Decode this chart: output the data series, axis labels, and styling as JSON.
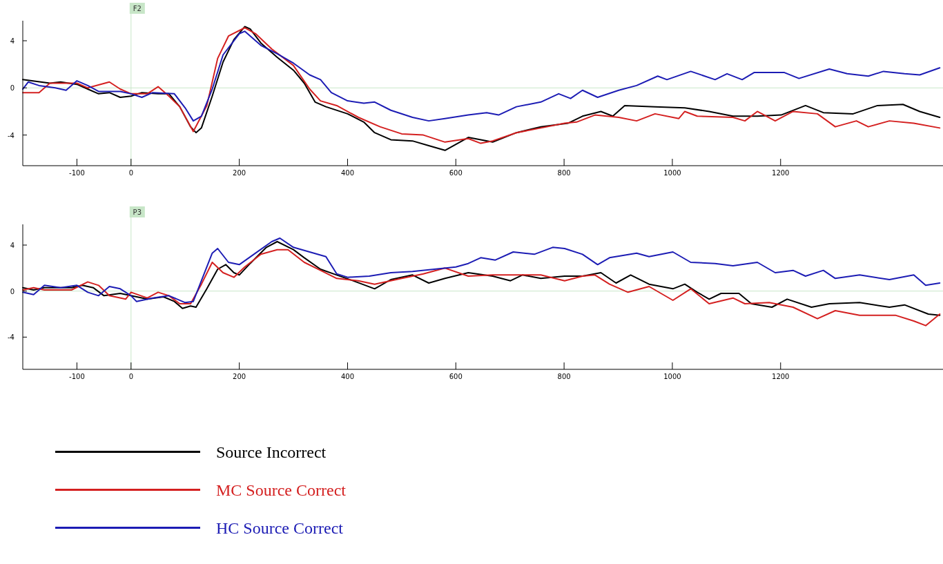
{
  "chart_data": [
    {
      "type": "line",
      "xlim": [
        -200,
        1500
      ],
      "ylim": [
        -6.6,
        5.7
      ],
      "xticks": [
        -100,
        0,
        200,
        400,
        600,
        800,
        1000,
        1200
      ],
      "yticks": [
        4,
        0,
        -4
      ],
      "grid": false,
      "legend": false,
      "line_style": "solid",
      "ref_lines": [
        {
          "axis": "x",
          "value": 0,
          "label": "F2",
          "color": "#c8e6c8"
        },
        {
          "axis": "y",
          "value": 0,
          "color": "#c8e6c8"
        }
      ],
      "series": [
        {
          "color": "#000000",
          "x": [
            -200,
            -150,
            -130,
            -100,
            -80,
            -60,
            -40,
            -20,
            0,
            20,
            50,
            70,
            90,
            110,
            120,
            130,
            150,
            170,
            190,
            210,
            220,
            240,
            270,
            300,
            320,
            340,
            360,
            400,
            430,
            450,
            480,
            520,
            550,
            580,
            623,
            668,
            712,
            757,
            807,
            834,
            868,
            890,
            912,
            968,
            1023,
            1068,
            1112,
            1157,
            1201,
            1246,
            1279,
            1334,
            1379,
            1426,
            1457,
            1494
          ],
          "values": [
            0.7,
            0.4,
            0.5,
            0.3,
            -0.1,
            -0.5,
            -0.4,
            -0.8,
            -0.7,
            -0.4,
            -0.5,
            -0.5,
            -1.6,
            -3.3,
            -3.8,
            -3.4,
            -0.7,
            2.2,
            4.1,
            5.2,
            5.0,
            3.8,
            2.6,
            1.5,
            0.4,
            -1.2,
            -1.6,
            -2.2,
            -2.9,
            -3.8,
            -4.4,
            -4.5,
            -4.9,
            -5.3,
            -4.2,
            -4.6,
            -3.8,
            -3.3,
            -3.0,
            -2.4,
            -2.0,
            -2.4,
            -1.5,
            -1.6,
            -1.7,
            -2.0,
            -2.4,
            -2.4,
            -2.3,
            -1.5,
            -2.1,
            -2.2,
            -1.5,
            -1.4,
            -2.0,
            -2.5
          ]
        },
        {
          "color": "#d42020",
          "x": [
            -200,
            -170,
            -150,
            -100,
            -80,
            -40,
            -20,
            0,
            30,
            50,
            70,
            90,
            115,
            140,
            160,
            180,
            210,
            230,
            260,
            300,
            330,
            350,
            380,
            420,
            460,
            500,
            540,
            580,
            623,
            646,
            668,
            712,
            757,
            801,
            823,
            857,
            901,
            934,
            968,
            1012,
            1023,
            1046,
            1112,
            1134,
            1157,
            1190,
            1223,
            1268,
            1301,
            1340,
            1362,
            1401,
            1446,
            1494
          ],
          "values": [
            -0.4,
            -0.4,
            0.4,
            0.4,
            0.0,
            0.5,
            -0.1,
            -0.5,
            -0.5,
            0.1,
            -0.7,
            -1.6,
            -3.7,
            -1.5,
            2.5,
            4.4,
            5.1,
            4.6,
            3.3,
            1.9,
            -0.1,
            -1.1,
            -1.5,
            -2.5,
            -3.3,
            -3.9,
            -4.0,
            -4.6,
            -4.3,
            -4.7,
            -4.5,
            -3.8,
            -3.4,
            -3.0,
            -2.9,
            -2.3,
            -2.5,
            -2.8,
            -2.2,
            -2.6,
            -2.0,
            -2.4,
            -2.5,
            -2.8,
            -2.0,
            -2.8,
            -2.0,
            -2.2,
            -3.3,
            -2.8,
            -3.3,
            -2.8,
            -3.0,
            -3.4
          ]
        },
        {
          "color": "#1c1cb4",
          "x": [
            -200,
            -190,
            -170,
            -140,
            -120,
            -100,
            -80,
            -60,
            -20,
            0,
            20,
            40,
            80,
            100,
            115,
            130,
            150,
            170,
            200,
            210,
            240,
            270,
            300,
            330,
            350,
            370,
            400,
            430,
            450,
            480,
            520,
            550,
            580,
            623,
            657,
            679,
            712,
            757,
            790,
            812,
            834,
            862,
            901,
            934,
            973,
            990,
            1034,
            1079,
            1101,
            1129,
            1151,
            1207,
            1234,
            1290,
            1323,
            1362,
            1390,
            1429,
            1457,
            1494
          ],
          "values": [
            -0.1,
            0.5,
            0.2,
            0.0,
            -0.2,
            0.6,
            0.2,
            -0.3,
            -0.3,
            -0.5,
            -0.8,
            -0.4,
            -0.5,
            -1.7,
            -2.8,
            -2.4,
            -0.1,
            2.8,
            4.6,
            4.8,
            3.6,
            2.9,
            2.1,
            1.1,
            0.7,
            -0.4,
            -1.1,
            -1.3,
            -1.2,
            -1.9,
            -2.5,
            -2.8,
            -2.6,
            -2.3,
            -2.1,
            -2.3,
            -1.6,
            -1.2,
            -0.5,
            -0.9,
            -0.2,
            -0.8,
            -0.2,
            0.2,
            1.0,
            0.7,
            1.4,
            0.7,
            1.2,
            0.7,
            1.3,
            1.3,
            0.8,
            1.6,
            1.2,
            1.0,
            1.4,
            1.2,
            1.1,
            1.7
          ]
        }
      ]
    },
    {
      "type": "line",
      "xlim": [
        -200,
        1500
      ],
      "ylim": [
        -6.8,
        5.8
      ],
      "xticks": [
        -100,
        0,
        200,
        400,
        600,
        800,
        1000,
        1200
      ],
      "yticks": [
        4,
        0,
        -4
      ],
      "grid": false,
      "legend": "bottom left",
      "line_style": "solid",
      "ref_lines": [
        {
          "axis": "x",
          "value": 0,
          "label": "P3",
          "color": "#c8e6c8"
        },
        {
          "axis": "y",
          "value": 0,
          "color": "#c8e6c8"
        }
      ],
      "series": [
        {
          "name": "Source Incorrect",
          "color": "#000000",
          "x": [
            -200,
            -180,
            -160,
            -130,
            -110,
            -90,
            -70,
            -50,
            -20,
            0,
            30,
            60,
            80,
            95,
            110,
            120,
            140,
            160,
            175,
            190,
            200,
            220,
            250,
            270,
            300,
            320,
            350,
            380,
            410,
            450,
            480,
            520,
            550,
            580,
            623,
            668,
            701,
            723,
            757,
            801,
            834,
            868,
            896,
            923,
            957,
            1001,
            1023,
            1046,
            1068,
            1090,
            1123,
            1146,
            1184,
            1212,
            1257,
            1290,
            1346,
            1401,
            1429,
            1473,
            1494
          ],
          "values": [
            0.3,
            0.1,
            0.3,
            0.3,
            0.3,
            0.5,
            0.3,
            -0.4,
            -0.2,
            -0.4,
            -0.7,
            -0.5,
            -0.9,
            -1.5,
            -1.3,
            -1.4,
            0.2,
            1.9,
            2.3,
            1.6,
            1.4,
            2.4,
            3.8,
            4.3,
            3.6,
            2.9,
            1.9,
            1.4,
            0.9,
            0.2,
            1.0,
            1.4,
            0.7,
            1.1,
            1.6,
            1.3,
            0.9,
            1.4,
            1.1,
            1.3,
            1.3,
            1.6,
            0.7,
            1.4,
            0.6,
            0.2,
            0.6,
            -0.1,
            -0.7,
            -0.2,
            -0.2,
            -1.1,
            -1.4,
            -0.7,
            -1.4,
            -1.1,
            -1.0,
            -1.4,
            -1.2,
            -2.0,
            -2.1
          ]
        },
        {
          "name": "MC Source Correct",
          "color": "#d42020",
          "x": [
            -200,
            -180,
            -160,
            -130,
            -110,
            -80,
            -60,
            -40,
            -10,
            0,
            30,
            50,
            70,
            90,
            110,
            130,
            150,
            170,
            190,
            210,
            240,
            270,
            290,
            320,
            350,
            380,
            420,
            450,
            500,
            540,
            580,
            623,
            668,
            757,
            801,
            834,
            857,
            884,
            918,
            957,
            1001,
            1034,
            1068,
            1112,
            1134,
            1179,
            1223,
            1268,
            1301,
            1346,
            1412,
            1446,
            1468,
            1494
          ],
          "values": [
            0.1,
            0.3,
            0.1,
            0.1,
            0.1,
            0.8,
            0.5,
            -0.4,
            -0.7,
            -0.1,
            -0.6,
            -0.1,
            -0.4,
            -1.1,
            -1.1,
            0.6,
            2.5,
            1.6,
            1.2,
            2.1,
            3.2,
            3.6,
            3.6,
            2.5,
            1.8,
            1.1,
            0.9,
            0.6,
            1.1,
            1.5,
            2.0,
            1.3,
            1.4,
            1.4,
            0.9,
            1.3,
            1.4,
            0.6,
            -0.1,
            0.4,
            -0.8,
            0.2,
            -1.1,
            -0.6,
            -1.1,
            -1.0,
            -1.4,
            -2.4,
            -1.7,
            -2.1,
            -2.1,
            -2.6,
            -3.0,
            -2.0
          ]
        },
        {
          "name": "HC Source Correct",
          "color": "#1c1cb4",
          "x": [
            -200,
            -180,
            -160,
            -130,
            -100,
            -80,
            -60,
            -40,
            -20,
            0,
            10,
            40,
            70,
            100,
            115,
            130,
            150,
            160,
            180,
            200,
            230,
            260,
            275,
            300,
            330,
            360,
            380,
            400,
            440,
            480,
            520,
            560,
            600,
            623,
            646,
            673,
            706,
            745,
            779,
            801,
            834,
            862,
            884,
            934,
            957,
            1001,
            1034,
            1079,
            1112,
            1157,
            1190,
            1223,
            1246,
            1279,
            1301,
            1346,
            1401,
            1446,
            1468,
            1494
          ],
          "values": [
            -0.1,
            -0.3,
            0.5,
            0.3,
            0.5,
            -0.1,
            -0.4,
            0.4,
            0.2,
            -0.4,
            -0.9,
            -0.6,
            -0.4,
            -1.0,
            -0.9,
            0.9,
            3.3,
            3.7,
            2.5,
            2.3,
            3.3,
            4.3,
            4.6,
            3.8,
            3.4,
            3.0,
            1.5,
            1.2,
            1.3,
            1.6,
            1.7,
            1.9,
            2.1,
            2.4,
            2.9,
            2.7,
            3.4,
            3.2,
            3.8,
            3.7,
            3.2,
            2.3,
            2.9,
            3.3,
            3.0,
            3.4,
            2.5,
            2.4,
            2.2,
            2.5,
            1.6,
            1.8,
            1.3,
            1.8,
            1.1,
            1.4,
            1.0,
            1.4,
            0.5,
            0.7
          ]
        }
      ]
    }
  ]
}
